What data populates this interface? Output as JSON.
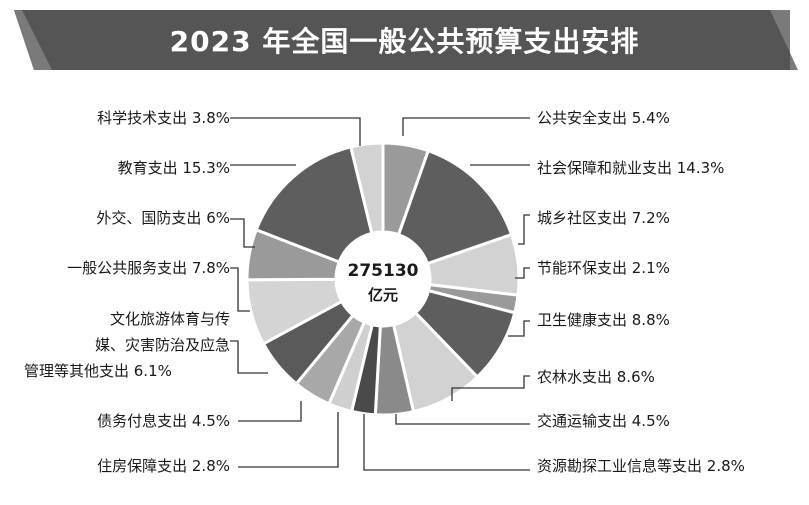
{
  "chart_data": {
    "type": "pie",
    "title": "2023 年全国一般公共预算支出安排",
    "center_value": "275130",
    "center_unit": "亿元",
    "slices": [
      {
        "label": "公共安全支出 5.4%",
        "value": 5.4,
        "color": "#9a9a9a"
      },
      {
        "label": "社会保障和就业支出 14.3%",
        "value": 14.3,
        "color": "#5e5e5e"
      },
      {
        "label": "城乡社区支出 7.2%",
        "value": 7.2,
        "color": "#d2d2d2"
      },
      {
        "label": "节能环保支出 2.1%",
        "value": 2.1,
        "color": "#9a9a9a"
      },
      {
        "label": "卫生健康支出 8.8%",
        "value": 8.8,
        "color": "#5e5e5e"
      },
      {
        "label": "农林水支出 8.6%",
        "value": 8.6,
        "color": "#d2d2d2"
      },
      {
        "label": "交通运输支出 4.5%",
        "value": 4.5,
        "color": "#8a8a8a"
      },
      {
        "label": "资源勘探工业信息等支出 2.8%",
        "value": 2.8,
        "color": "#4a4a4a"
      },
      {
        "label": "住房保障支出 2.8%",
        "value": 2.8,
        "color": "#cfcfcf"
      },
      {
        "label": "债务付息支出 4.5%",
        "value": 4.5,
        "color": "#a8a8a8"
      },
      {
        "label": "文化旅游体育与传媒、灾害防治及应急管理等其他支出 6.1%",
        "value": 6.1,
        "color": "#5a5a5a"
      },
      {
        "label": "一般公共服务支出 7.8%",
        "value": 7.8,
        "color": "#d4d4d4"
      },
      {
        "label": "外交、国防支出 6%",
        "value": 6.0,
        "color": "#9a9a9a"
      },
      {
        "label": "教育支出 15.3%",
        "value": 15.3,
        "color": "#5e5e5e"
      },
      {
        "label": "科学技术支出 3.8%",
        "value": 3.8,
        "color": "#d2d2d2"
      }
    ]
  }
}
